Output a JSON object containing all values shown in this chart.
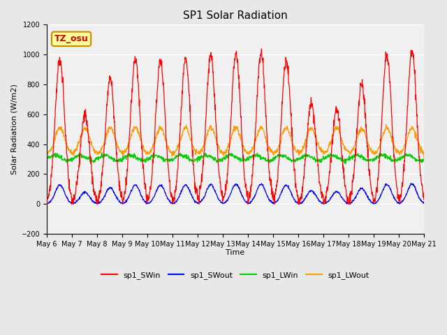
{
  "title": "SP1 Solar Radiation",
  "ylabel": "Solar Radiation (W/m2)",
  "xlabel": "Time",
  "ylim": [
    -200,
    1200
  ],
  "yticks": [
    -200,
    0,
    200,
    400,
    600,
    800,
    1000,
    1200
  ],
  "xtick_labels": [
    "May 6",
    "May 7",
    "May 8",
    "May 9",
    "May 10",
    "May 11",
    "May 12",
    "May 13",
    "May 14",
    "May 15",
    "May 16",
    "May 17",
    "May 18",
    "May 19",
    "May 20",
    "May 21"
  ],
  "colors": {
    "SWin": "#ff0000",
    "SWout": "#0000ff",
    "LWin": "#00cc00",
    "LWout": "#ff9900"
  },
  "annotation_text": "TZ_osu",
  "annotation_bg": "#ffff99",
  "annotation_border": "#cc8800",
  "bg_color": "#e8e8e8",
  "plot_bg": "#f0f0f0",
  "n_days": 15,
  "dt_hours": 0.25,
  "day_peaks_SWin": [
    970,
    600,
    830,
    970,
    960,
    970,
    990,
    1010,
    1010,
    960,
    670,
    630,
    800,
    1000,
    1020
  ],
  "legend_labels": [
    "sp1_SWin",
    "sp1_SWout",
    "sp1_LWin",
    "sp1_LWout"
  ]
}
